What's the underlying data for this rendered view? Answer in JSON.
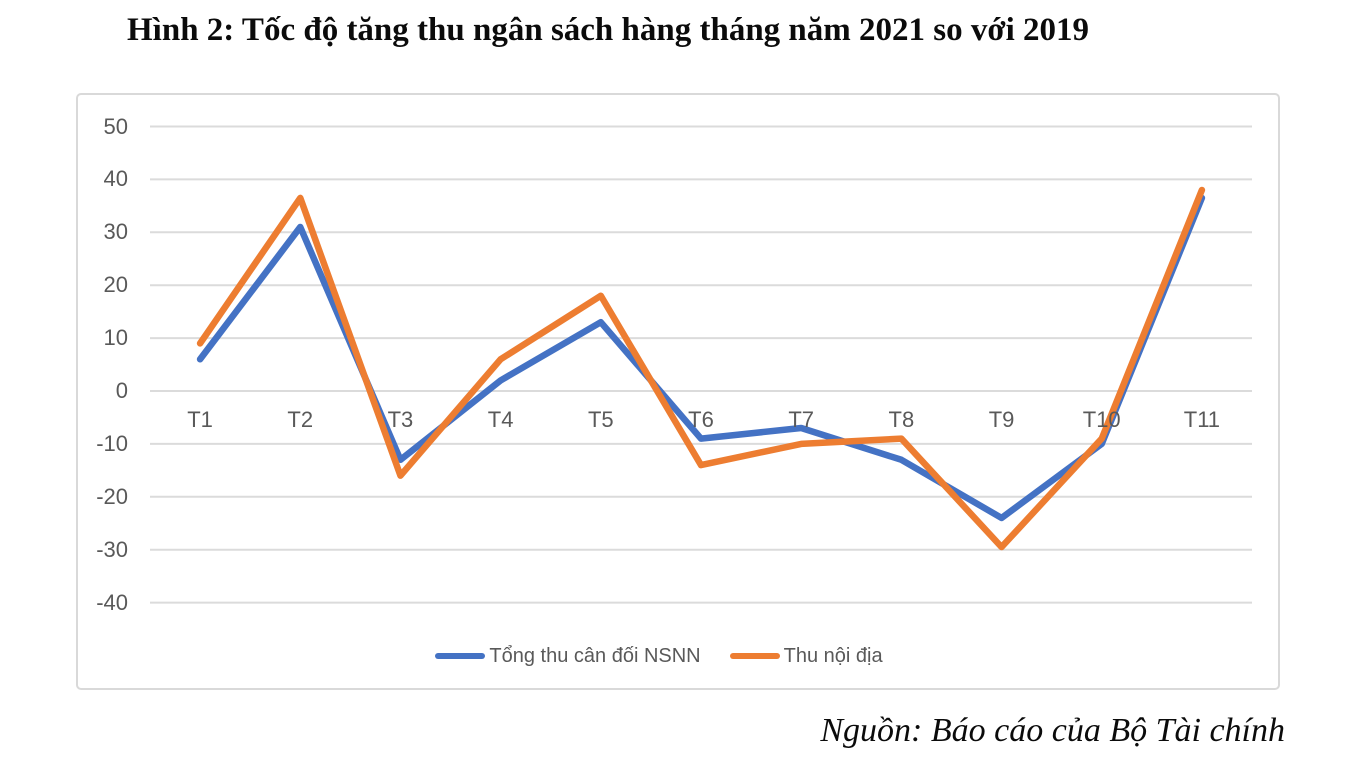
{
  "figure": {
    "title": "Hình 2: Tốc độ tăng thu ngân sách hàng tháng năm 2021 so với 2019",
    "source_caption": "Nguồn: Báo cáo của Bộ Tài chính"
  },
  "colors": {
    "series_blue": "#4472C4",
    "series_orange": "#ED7D31",
    "gridline": "#DBDBDB",
    "axis_text": "#595959",
    "chart_border": "#D9D9D9"
  },
  "chart_data": {
    "type": "line",
    "title": "",
    "xlabel": "",
    "ylabel": "",
    "categories": [
      "T1",
      "T2",
      "T3",
      "T4",
      "T5",
      "T6",
      "T7",
      "T8",
      "T9",
      "T10",
      "T11"
    ],
    "series": [
      {
        "name": "Tổng thu cân đối NSNN",
        "color": "#4472C4",
        "values": [
          6,
          31,
          -13,
          2,
          13,
          -9,
          -7,
          -13,
          -24,
          -10,
          36.5
        ]
      },
      {
        "name": "Thu nội địa",
        "color": "#ED7D31",
        "values": [
          9,
          36.5,
          -16,
          6,
          18,
          -14,
          -10,
          -9,
          -29.5,
          -9,
          38
        ]
      }
    ],
    "yticks": [
      50,
      40,
      30,
      20,
      10,
      0,
      -10,
      -20,
      -30,
      -40
    ],
    "ylim": [
      -40,
      50
    ],
    "grid": "horizontal",
    "legend_position": "bottom"
  }
}
